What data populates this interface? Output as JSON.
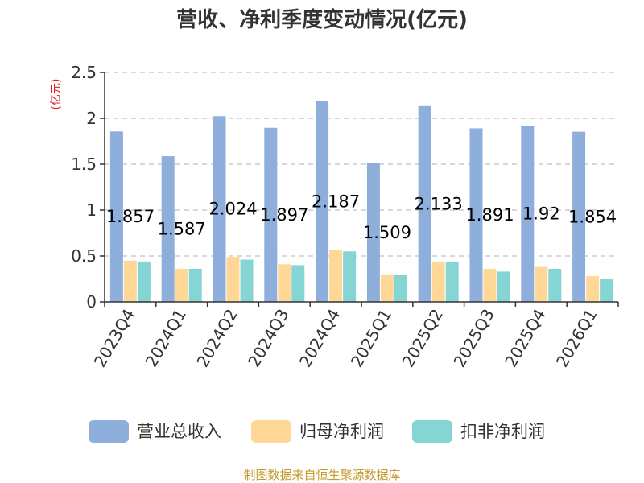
{
  "chart_data": {
    "type": "bar",
    "title": "营收、净利季度变动情况(亿元)",
    "ylabel": "(亿元)",
    "xlabel": "",
    "ylim": [
      0,
      2.5
    ],
    "yticks": [
      "0",
      "0.5",
      "1",
      "1.5",
      "2",
      "2.5"
    ],
    "categories": [
      "2023Q4",
      "2024Q1",
      "2024Q2",
      "2024Q3",
      "2024Q4",
      "2025Q1",
      "2025Q2",
      "2025Q3",
      "2025Q4",
      "2026Q1"
    ],
    "series": [
      {
        "name": "营业总收入",
        "color": "#8eaedc",
        "values": [
          1.857,
          1.587,
          2.024,
          1.897,
          2.187,
          1.509,
          2.133,
          1.891,
          1.92,
          1.854
        ],
        "labels": [
          "1.857",
          "1.587",
          "2.024",
          "1.897",
          "2.187",
          "1.509",
          "2.133",
          "1.891",
          "1.92",
          "1.854"
        ]
      },
      {
        "name": "归母净利润",
        "color": "#ffd898",
        "values": [
          0.45,
          0.36,
          0.49,
          0.41,
          0.57,
          0.3,
          0.44,
          0.36,
          0.38,
          0.28
        ]
      },
      {
        "name": "扣非净利润",
        "color": "#86d5d5",
        "values": [
          0.44,
          0.36,
          0.46,
          0.4,
          0.55,
          0.29,
          0.43,
          0.33,
          0.36,
          0.25
        ]
      }
    ],
    "grid": "horizontal-dashed",
    "legend": "bottom-center"
  },
  "source": "制图数据来自恒生聚源数据库"
}
